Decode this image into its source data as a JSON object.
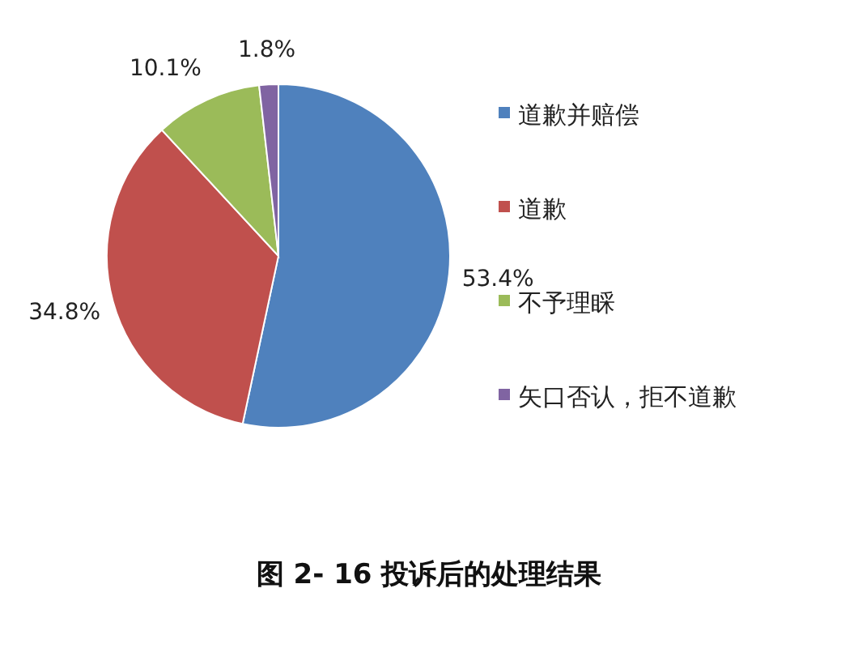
{
  "chart_data": {
    "type": "pie",
    "title": "图 2- 16 投诉后的处理结果",
    "categories": [
      "道歉并赔偿",
      "道歉",
      "不予理睬",
      "矢口否认，拒不道歉"
    ],
    "values": [
      53.4,
      34.8,
      10.1,
      1.8
    ],
    "colors": [
      "#4f81bd",
      "#c0504d",
      "#9bbb59",
      "#8064a2"
    ],
    "value_labels": [
      "53.4%",
      "34.8%",
      "10.1%",
      "1.8%"
    ],
    "legend": "right"
  }
}
